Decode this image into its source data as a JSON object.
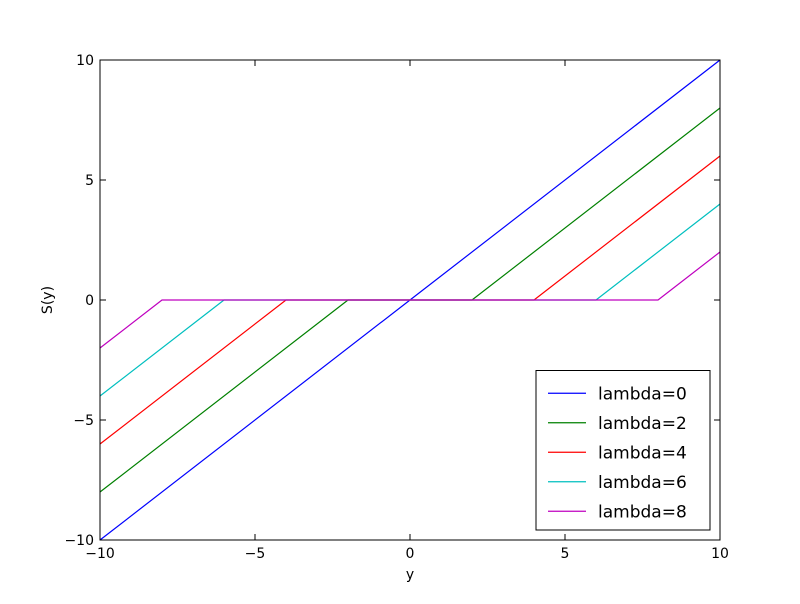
{
  "chart_data": {
    "type": "line",
    "title": "",
    "xlabel": "y",
    "ylabel": "S(y)",
    "xlim": [
      -10,
      10
    ],
    "ylim": [
      -10,
      10
    ],
    "xticks": [
      -10,
      -5,
      0,
      5,
      10
    ],
    "yticks": [
      -10,
      -5,
      0,
      5,
      10
    ],
    "xtick_labels": [
      "−10",
      "−5",
      "0",
      "5",
      "10"
    ],
    "ytick_labels": [
      "−10",
      "−5",
      "0",
      "5",
      "10"
    ],
    "grid": false,
    "legend_position": "lower-right",
    "series": [
      {
        "name": "lambda=0",
        "color": "#0000ff",
        "x": [
          -10,
          0,
          10
        ],
        "y": [
          -10,
          0,
          10
        ]
      },
      {
        "name": "lambda=2",
        "color": "#008000",
        "x": [
          -10,
          -2,
          2,
          10
        ],
        "y": [
          -8,
          0,
          0,
          8
        ]
      },
      {
        "name": "lambda=4",
        "color": "#ff0000",
        "x": [
          -10,
          -4,
          4,
          10
        ],
        "y": [
          -6,
          0,
          0,
          6
        ]
      },
      {
        "name": "lambda=6",
        "color": "#00bfbf",
        "x": [
          -10,
          -6,
          6,
          10
        ],
        "y": [
          -4,
          0,
          0,
          4
        ]
      },
      {
        "name": "lambda=8",
        "color": "#bf00bf",
        "x": [
          -10,
          -8,
          8,
          10
        ],
        "y": [
          -2,
          0,
          0,
          2
        ]
      }
    ]
  }
}
